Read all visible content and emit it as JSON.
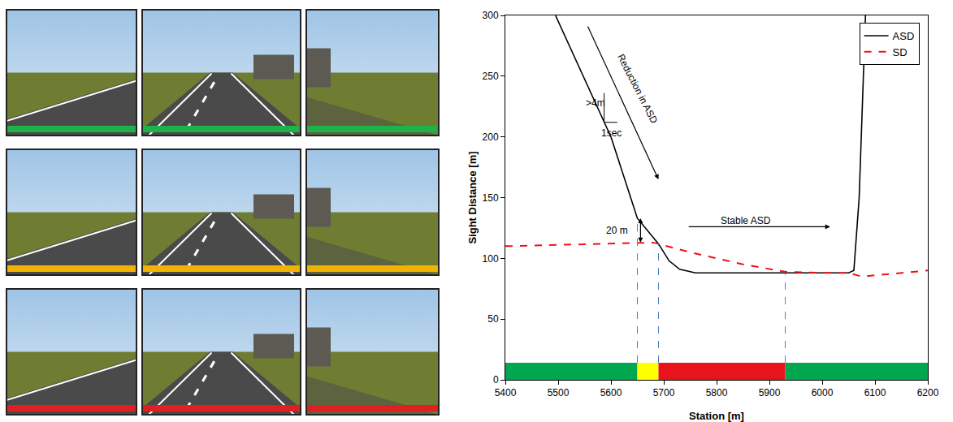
{
  "chart_data": {
    "type": "line",
    "xlabel": "Station [m]",
    "ylabel": "Sight Distance [m]",
    "xlim": [
      5400,
      6200
    ],
    "xticks": [
      5400,
      5500,
      5600,
      5700,
      5800,
      5900,
      6000,
      6100,
      6200
    ],
    "ylim": [
      0,
      300
    ],
    "yticks": [
      0,
      50,
      100,
      150,
      200,
      250,
      300
    ],
    "grid": false,
    "legend": "top right",
    "series": [
      {
        "name": "ASD",
        "color": "#000000",
        "line_style": "solid",
        "x": [
          5495,
          5520,
          5550,
          5600,
          5650,
          5690,
          5710,
          5730,
          5750,
          5760,
          5800,
          5850,
          5900,
          5950,
          6000,
          6050,
          6060,
          6070,
          6078,
          6082
        ],
        "values": [
          300,
          276,
          248,
          200,
          133,
          112,
          98,
          91,
          89,
          88,
          88,
          88,
          88,
          88,
          88,
          88,
          90,
          150,
          250,
          300
        ]
      },
      {
        "name": "SD",
        "color": "#e8141b",
        "line_style": "dash",
        "x": [
          5400,
          5500,
          5600,
          5680,
          5750,
          5850,
          5930,
          6000,
          6050,
          6075,
          6100,
          6150,
          6200
        ],
        "values": [
          110,
          111,
          112,
          113,
          105,
          95,
          89,
          88,
          88,
          85,
          86,
          88,
          90
        ]
      }
    ],
    "zones": [
      {
        "from": 5400,
        "to": 5650,
        "color": "#00a650"
      },
      {
        "from": 5650,
        "to": 5690,
        "color": "#ffff00"
      },
      {
        "from": 5690,
        "to": 5930,
        "color": "#e8141b"
      },
      {
        "from": 5930,
        "to": 6200,
        "color": "#00a650"
      }
    ],
    "zone_height": 14,
    "guides": [
      {
        "x": 5650,
        "y": 133
      },
      {
        "x": 5690,
        "y": 112
      },
      {
        "x": 5930,
        "y": 88
      }
    ],
    "guide_color": "#4f81bd",
    "annotations": [
      {
        "text": "Reduction in ASD",
        "x": 5650,
        "y": 240,
        "angle": 63,
        "arrow": {
          "x0": 5555,
          "y0": 292,
          "x1": 5690,
          "y1": 165
        }
      },
      {
        "text": ">4m",
        "x": 5570,
        "y": 228
      },
      {
        "text": "1sec",
        "x": 5600,
        "y": 203
      },
      {
        "text": "20 m",
        "x": 5612,
        "y": 123,
        "arrow": {
          "x0": 5656,
          "y0": 112,
          "x1": 5656,
          "y1": 133,
          "both": true
        }
      },
      {
        "text": "Stable ASD",
        "x": 5855,
        "y": 131,
        "arrow": {
          "x0": 5745,
          "y0": 126,
          "x1": 6015,
          "y1": 126
        }
      }
    ],
    "slope_triangle": {
      "x": [
        5587,
        5587,
        5612
      ],
      "y": [
        236,
        212,
        212
      ]
    }
  },
  "panels": {
    "strip_colors": [
      "#1fb24a",
      "#f0b400",
      "#e02020"
    ]
  }
}
